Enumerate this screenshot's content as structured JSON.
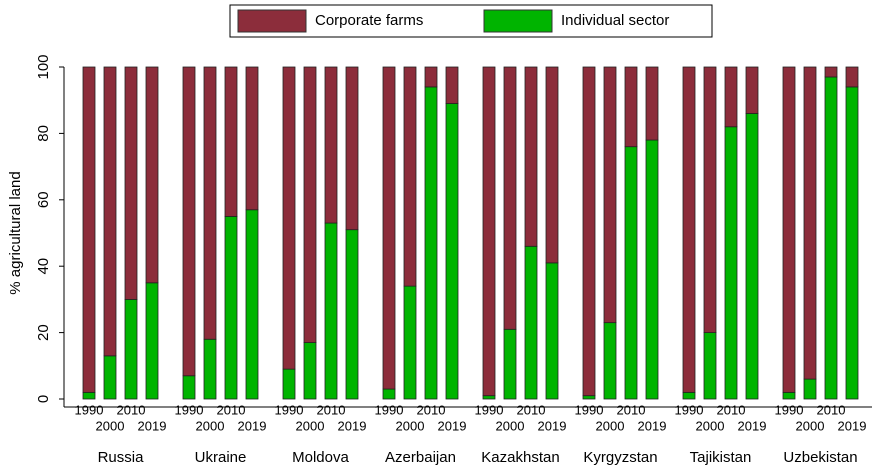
{
  "chart_data": {
    "type": "stacked_bar",
    "groups": [
      "Russia",
      "Ukraine",
      "Moldova",
      "Azerbaijan",
      "Kazakhstan",
      "Kyrgyzstan",
      "Tajikistan",
      "Uzbekistan"
    ],
    "subcategories": [
      "1990",
      "2000",
      "2010",
      "2019"
    ],
    "ylabel": "% agricultural land",
    "ylim": [
      0,
      100
    ],
    "yticks": [
      0,
      20,
      40,
      60,
      80,
      100
    ],
    "legend": "top",
    "series": [
      {
        "name": "Corporate farms",
        "color": "#8c2d3b",
        "values": [
          [
            98,
            87,
            70,
            65
          ],
          [
            93,
            82,
            45,
            43
          ],
          [
            91,
            83,
            47,
            49
          ],
          [
            97,
            66,
            6,
            11
          ],
          [
            99,
            79,
            54,
            59
          ],
          [
            99,
            77,
            24,
            22
          ],
          [
            98,
            80,
            18,
            14
          ],
          [
            98,
            94,
            3,
            6
          ]
        ]
      },
      {
        "name": "Individual sector",
        "color": "#00b400",
        "values": [
          [
            2,
            13,
            30,
            35
          ],
          [
            7,
            18,
            55,
            57
          ],
          [
            9,
            17,
            53,
            51
          ],
          [
            3,
            34,
            94,
            89
          ],
          [
            1,
            21,
            46,
            41
          ],
          [
            1,
            23,
            76,
            78
          ],
          [
            2,
            20,
            82,
            86
          ],
          [
            2,
            6,
            97,
            94
          ]
        ]
      }
    ]
  }
}
